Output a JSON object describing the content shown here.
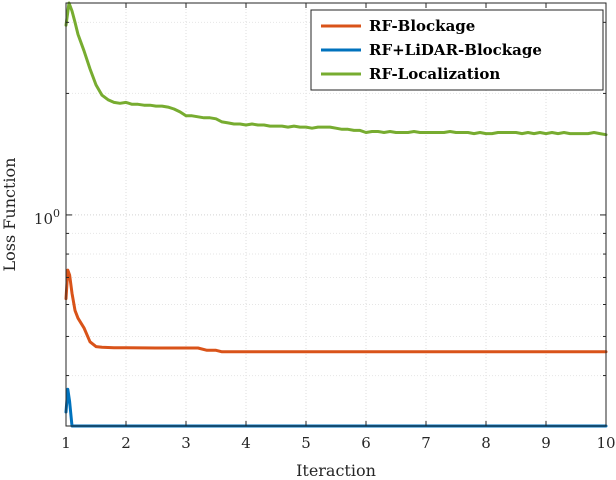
{
  "chart_data": {
    "type": "line",
    "xlabel": "Iteraction",
    "ylabel": "Loss Function",
    "y_scale": "log",
    "xlim": [
      1,
      10
    ],
    "ylim": [
      0.3,
      3.35
    ],
    "x_ticks": [
      1,
      2,
      3,
      4,
      5,
      6,
      7,
      8,
      9,
      10
    ],
    "x_tick_labels": [
      "1",
      "2",
      "3",
      "4",
      "5",
      "6",
      "7",
      "8",
      "9",
      "10"
    ],
    "y_tick_label": {
      "base": "10",
      "exponent": "0",
      "value": 1
    },
    "grid": "on",
    "legend_position": "top-right",
    "series": [
      {
        "name": "RF-Blockage",
        "color": "#D95319",
        "x": [
          1.0,
          1.03,
          1.06,
          1.1,
          1.15,
          1.2,
          1.3,
          1.4,
          1.5,
          1.6,
          1.8,
          2.0,
          2.5,
          3.0,
          3.2,
          3.35,
          3.5,
          3.6,
          4.0,
          5.0,
          6.0,
          7.0,
          8.0,
          9.0,
          10.0
        ],
        "values": [
          0.62,
          0.73,
          0.71,
          0.64,
          0.58,
          0.555,
          0.525,
          0.485,
          0.472,
          0.47,
          0.469,
          0.469,
          0.468,
          0.468,
          0.468,
          0.462,
          0.462,
          0.458,
          0.458,
          0.458,
          0.458,
          0.458,
          0.458,
          0.458,
          0.458
        ]
      },
      {
        "name": "RF+LiDAR-Blockage",
        "color": "#0072BD",
        "x": [
          1.0,
          1.03,
          1.06,
          1.1,
          1.2,
          2.0,
          4.0,
          6.0,
          8.0,
          10.0
        ],
        "values": [
          0.325,
          0.37,
          0.345,
          0.3,
          0.3,
          0.3,
          0.3,
          0.3,
          0.3,
          0.3
        ]
      },
      {
        "name": "RF-Localization",
        "color": "#77AC30",
        "x": [
          1.0,
          1.05,
          1.1,
          1.15,
          1.2,
          1.3,
          1.4,
          1.5,
          1.6,
          1.7,
          1.8,
          1.9,
          2.0,
          2.1,
          2.2,
          2.3,
          2.4,
          2.5,
          2.6,
          2.7,
          2.8,
          2.9,
          3.0,
          3.1,
          3.2,
          3.3,
          3.4,
          3.5,
          3.6,
          3.7,
          3.8,
          3.9,
          4.0,
          4.1,
          4.2,
          4.3,
          4.4,
          4.5,
          4.6,
          4.7,
          4.8,
          4.9,
          5.0,
          5.1,
          5.2,
          5.3,
          5.4,
          5.5,
          5.6,
          5.7,
          5.8,
          5.9,
          6.0,
          6.1,
          6.2,
          6.3,
          6.4,
          6.5,
          6.6,
          6.7,
          6.8,
          6.9,
          7.0,
          7.1,
          7.2,
          7.3,
          7.4,
          7.5,
          7.6,
          7.7,
          7.8,
          7.9,
          8.0,
          8.1,
          8.2,
          8.3,
          8.4,
          8.5,
          8.6,
          8.7,
          8.8,
          8.9,
          9.0,
          9.1,
          9.2,
          9.3,
          9.4,
          9.5,
          9.6,
          9.7,
          9.8,
          9.9,
          10.0
        ],
        "values": [
          2.95,
          3.35,
          3.2,
          3.0,
          2.8,
          2.55,
          2.3,
          2.1,
          1.98,
          1.93,
          1.9,
          1.89,
          1.9,
          1.88,
          1.88,
          1.87,
          1.87,
          1.86,
          1.86,
          1.85,
          1.83,
          1.8,
          1.76,
          1.76,
          1.75,
          1.74,
          1.74,
          1.73,
          1.7,
          1.69,
          1.68,
          1.68,
          1.67,
          1.68,
          1.67,
          1.67,
          1.66,
          1.66,
          1.66,
          1.65,
          1.66,
          1.65,
          1.65,
          1.64,
          1.65,
          1.65,
          1.65,
          1.64,
          1.63,
          1.63,
          1.62,
          1.62,
          1.6,
          1.61,
          1.61,
          1.6,
          1.61,
          1.6,
          1.6,
          1.6,
          1.61,
          1.6,
          1.6,
          1.6,
          1.6,
          1.6,
          1.61,
          1.6,
          1.6,
          1.6,
          1.59,
          1.6,
          1.59,
          1.59,
          1.6,
          1.6,
          1.6,
          1.6,
          1.59,
          1.6,
          1.59,
          1.6,
          1.59,
          1.6,
          1.59,
          1.6,
          1.59,
          1.59,
          1.59,
          1.59,
          1.6,
          1.59,
          1.58
        ]
      }
    ]
  }
}
